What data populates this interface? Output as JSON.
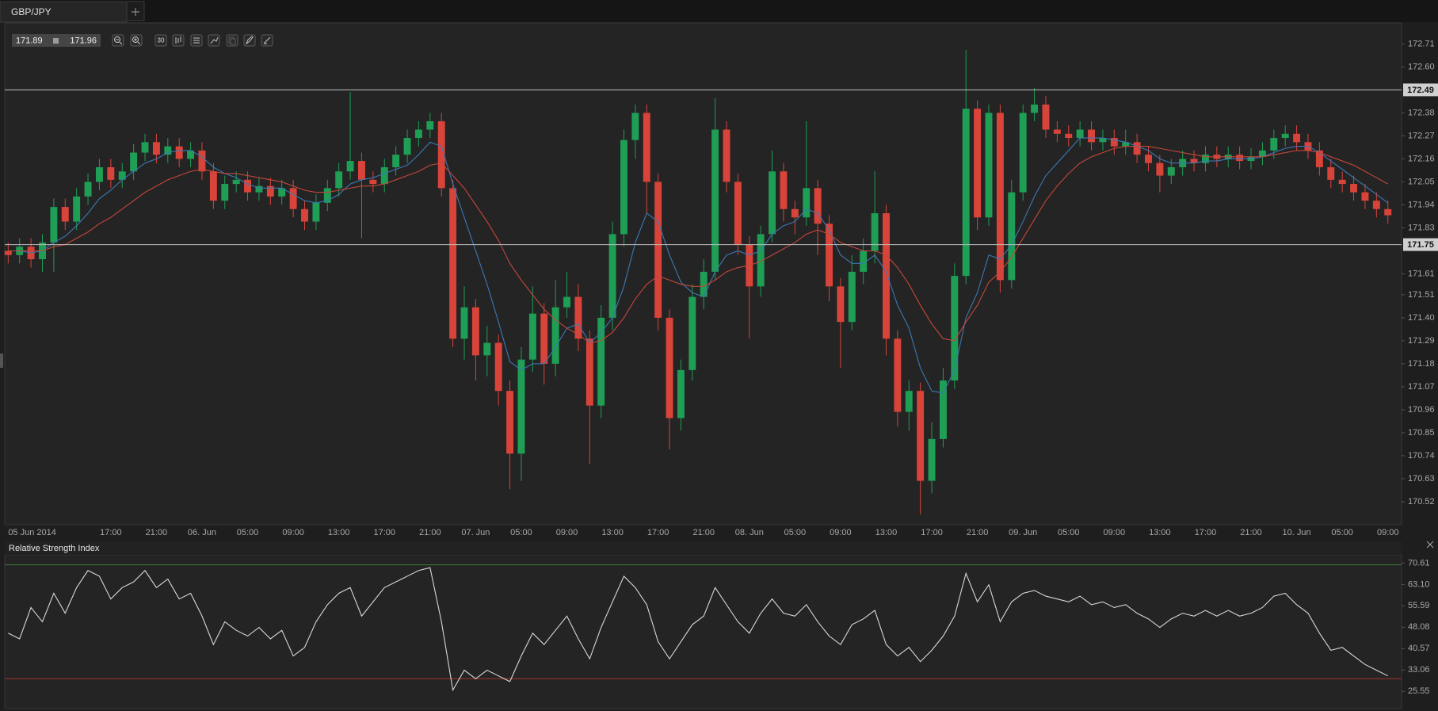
{
  "tab": "GBP/JPY",
  "quote": {
    "bid": "171.89",
    "ask": "171.96"
  },
  "interval_button": "30",
  "chart_data": [
    {
      "type": "candlestick",
      "xlim": [
        -0.3,
        122.2
      ],
      "xticks": [
        {
          "value": 0,
          "label": "05 Jun 2014"
        },
        {
          "value": 9,
          "label": "17:00"
        },
        {
          "value": 13,
          "label": "21:00"
        },
        {
          "value": 17,
          "label": "06. Jun"
        },
        {
          "value": 21,
          "label": "05:00"
        },
        {
          "value": 25,
          "label": "09:00"
        },
        {
          "value": 29,
          "label": "13:00"
        },
        {
          "value": 33,
          "label": "17:00"
        },
        {
          "value": 37,
          "label": "21:00"
        },
        {
          "value": 41,
          "label": "07. Jun"
        },
        {
          "value": 45,
          "label": "05:00"
        },
        {
          "value": 49,
          "label": "09:00"
        },
        {
          "value": 53,
          "label": "13:00"
        },
        {
          "value": 57,
          "label": "17:00"
        },
        {
          "value": 61,
          "label": "21:00"
        },
        {
          "value": 65,
          "label": "08. Jun"
        },
        {
          "value": 69,
          "label": "05:00"
        },
        {
          "value": 73,
          "label": "09:00"
        },
        {
          "value": 77,
          "label": "13:00"
        },
        {
          "value": 81,
          "label": "17:00"
        },
        {
          "value": 85,
          "label": "21:00"
        },
        {
          "value": 89,
          "label": "09. Jun"
        },
        {
          "value": 93,
          "label": "05:00"
        },
        {
          "value": 97,
          "label": "09:00"
        },
        {
          "value": 101,
          "label": "13:00"
        },
        {
          "value": 105,
          "label": "17:00"
        },
        {
          "value": 109,
          "label": "21:00"
        },
        {
          "value": 113,
          "label": "10. Jun"
        },
        {
          "value": 117,
          "label": "05:00"
        },
        {
          "value": 121,
          "label": "09:00"
        }
      ],
      "ylim": [
        170.41,
        172.81
      ],
      "yticks": [
        172.71,
        {
          "value": 172.6,
          "label": "172.60"
        },
        172.38,
        172.27,
        172.16,
        172.05,
        171.94,
        171.83,
        171.61,
        171.51,
        {
          "value": 171.4,
          "label": "171.40"
        },
        171.29,
        171.18,
        171.07,
        170.96,
        170.85,
        170.74,
        170.63,
        170.52
      ],
      "hlines": [
        172.49,
        171.75
      ],
      "hline_color": "#bdbdbd",
      "up_color": "#1f9e55",
      "down_color": "#d9443a",
      "x": [
        0,
        1,
        2,
        3,
        4,
        5,
        6,
        7,
        8,
        9,
        10,
        11,
        12,
        13,
        14,
        15,
        16,
        17,
        18,
        19,
        20,
        21,
        22,
        23,
        24,
        25,
        26,
        27,
        28,
        29,
        30,
        31,
        32,
        33,
        34,
        35,
        36,
        37,
        38,
        39,
        40,
        41,
        42,
        43,
        44,
        45,
        46,
        47,
        48,
        49,
        50,
        51,
        52,
        53,
        54,
        55,
        56,
        57,
        58,
        59,
        60,
        61,
        62,
        63,
        64,
        65,
        66,
        67,
        68,
        69,
        70,
        71,
        72,
        73,
        74,
        75,
        76,
        77,
        78,
        79,
        80,
        81,
        82,
        83,
        84,
        85,
        86,
        87,
        88,
        89,
        90,
        91,
        92,
        93,
        94,
        95,
        96,
        97,
        98,
        99,
        100,
        101,
        102,
        103,
        104,
        105,
        106,
        107,
        108,
        109,
        110,
        111,
        112,
        113,
        114,
        115,
        116,
        117,
        118,
        119,
        120,
        121
      ],
      "open": [
        171.72,
        171.7,
        171.74,
        171.68,
        171.76,
        171.93,
        171.86,
        171.98,
        172.05,
        172.12,
        172.06,
        172.1,
        172.19,
        172.24,
        172.18,
        172.22,
        172.16,
        172.2,
        172.1,
        171.96,
        172.04,
        172.06,
        172.0,
        172.03,
        171.98,
        172.02,
        171.92,
        171.86,
        171.95,
        172.02,
        172.1,
        172.15,
        172.06,
        172.04,
        172.12,
        172.18,
        172.26,
        172.3,
        172.34,
        172.02,
        171.3,
        171.45,
        171.22,
        171.28,
        171.05,
        170.75,
        171.2,
        171.42,
        171.18,
        171.45,
        171.5,
        171.3,
        170.98,
        171.4,
        171.8,
        172.25,
        172.38,
        172.05,
        171.4,
        170.92,
        171.15,
        171.5,
        171.62,
        172.3,
        172.05,
        171.75,
        171.55,
        171.8,
        172.1,
        171.92,
        171.88,
        172.02,
        171.85,
        171.55,
        171.38,
        171.62,
        171.72,
        171.9,
        171.3,
        170.95,
        171.05,
        170.62,
        170.82,
        171.1,
        171.6,
        172.4,
        171.88,
        172.38,
        171.58,
        172.0,
        172.38,
        172.42,
        172.3,
        172.28,
        172.26,
        172.3,
        172.24,
        172.26,
        172.22,
        172.24,
        172.18,
        172.14,
        172.08,
        172.12,
        172.16,
        172.14,
        172.18,
        172.16,
        172.18,
        172.15,
        172.17,
        172.2,
        172.26,
        172.28,
        172.24,
        172.2,
        172.12,
        172.06,
        172.04,
        172.0,
        171.96,
        171.92
      ],
      "high": [
        171.76,
        171.78,
        171.78,
        171.8,
        171.97,
        171.97,
        172.02,
        172.09,
        172.16,
        172.16,
        172.14,
        172.23,
        172.28,
        172.28,
        172.26,
        172.26,
        172.24,
        172.24,
        172.14,
        172.08,
        172.1,
        172.1,
        172.07,
        172.07,
        172.06,
        172.06,
        171.96,
        171.99,
        172.06,
        172.14,
        172.48,
        172.19,
        172.1,
        172.16,
        172.22,
        172.3,
        172.34,
        172.38,
        172.38,
        172.06,
        171.55,
        171.49,
        171.36,
        171.32,
        171.1,
        171.26,
        171.55,
        171.47,
        171.58,
        171.62,
        171.56,
        171.34,
        171.46,
        171.86,
        172.3,
        172.42,
        172.42,
        172.09,
        171.44,
        171.2,
        171.56,
        171.68,
        172.45,
        172.34,
        172.09,
        171.79,
        171.84,
        172.2,
        172.14,
        171.96,
        172.34,
        172.06,
        171.89,
        171.59,
        171.7,
        171.78,
        172.1,
        171.94,
        171.34,
        171.1,
        171.09,
        170.9,
        171.16,
        171.66,
        172.68,
        172.44,
        172.42,
        172.42,
        172.06,
        172.42,
        172.5,
        172.46,
        172.34,
        172.32,
        172.34,
        172.34,
        172.3,
        172.3,
        172.3,
        172.28,
        172.22,
        172.18,
        172.16,
        172.2,
        172.2,
        172.22,
        172.22,
        172.22,
        172.22,
        172.21,
        172.24,
        172.3,
        172.32,
        172.32,
        172.28,
        172.24,
        172.16,
        172.1,
        172.08,
        172.04,
        172.0,
        171.96
      ],
      "low": [
        171.66,
        171.66,
        171.64,
        171.62,
        171.62,
        171.82,
        171.82,
        171.94,
        172.01,
        172.02,
        172.02,
        172.06,
        172.15,
        172.14,
        172.14,
        172.12,
        172.12,
        172.06,
        171.92,
        171.92,
        172.0,
        171.96,
        171.96,
        171.94,
        171.94,
        171.88,
        171.82,
        171.82,
        171.91,
        171.98,
        172.06,
        171.78,
        172.0,
        172.0,
        172.08,
        172.14,
        172.22,
        172.26,
        171.98,
        171.26,
        171.2,
        171.1,
        171.12,
        170.98,
        170.58,
        170.62,
        171.14,
        171.08,
        171.12,
        171.4,
        171.24,
        170.7,
        170.92,
        171.34,
        171.74,
        172.16,
        171.9,
        171.34,
        170.77,
        170.86,
        171.1,
        171.44,
        171.58,
        172.0,
        171.7,
        171.3,
        171.5,
        171.76,
        171.86,
        171.8,
        171.84,
        171.7,
        171.48,
        171.16,
        171.34,
        171.56,
        171.66,
        171.22,
        170.88,
        170.86,
        170.46,
        170.56,
        170.78,
        171.06,
        171.56,
        171.82,
        171.84,
        171.52,
        171.54,
        171.96,
        172.34,
        172.26,
        172.24,
        172.22,
        172.22,
        172.2,
        172.2,
        172.18,
        172.18,
        172.14,
        172.1,
        172.0,
        172.04,
        172.08,
        172.1,
        172.1,
        172.12,
        172.12,
        172.11,
        172.11,
        172.13,
        172.16,
        172.22,
        172.2,
        172.16,
        172.08,
        172.02,
        172.0,
        171.96,
        171.92,
        171.88,
        171.85
      ],
      "close": [
        171.7,
        171.74,
        171.68,
        171.76,
        171.93,
        171.86,
        171.98,
        172.05,
        172.12,
        172.06,
        172.1,
        172.19,
        172.24,
        172.18,
        172.22,
        172.16,
        172.2,
        172.1,
        171.96,
        172.04,
        172.06,
        172.0,
        172.03,
        171.98,
        172.02,
        171.92,
        171.86,
        171.95,
        172.02,
        172.1,
        172.15,
        172.06,
        172.04,
        172.12,
        172.18,
        172.26,
        172.3,
        172.34,
        172.02,
        171.3,
        171.45,
        171.22,
        171.28,
        171.05,
        170.75,
        171.2,
        171.42,
        171.18,
        171.45,
        171.5,
        171.3,
        170.98,
        171.4,
        171.8,
        172.25,
        172.38,
        172.05,
        171.4,
        170.92,
        171.15,
        171.5,
        171.62,
        172.3,
        172.05,
        171.75,
        171.55,
        171.8,
        172.1,
        171.92,
        171.88,
        172.02,
        171.85,
        171.55,
        171.38,
        171.62,
        171.72,
        171.9,
        171.3,
        170.95,
        171.05,
        170.62,
        170.82,
        171.1,
        171.6,
        172.4,
        171.88,
        172.38,
        171.58,
        172.0,
        172.38,
        172.42,
        172.3,
        172.28,
        172.26,
        172.3,
        172.24,
        172.26,
        172.22,
        172.24,
        172.18,
        172.14,
        172.08,
        172.12,
        172.16,
        172.14,
        172.18,
        172.16,
        172.18,
        172.15,
        172.17,
        172.2,
        172.26,
        172.28,
        172.24,
        172.2,
        172.12,
        172.06,
        172.04,
        172.0,
        171.96,
        171.92,
        171.89
      ],
      "series": [
        {
          "color": "#3b78b4",
          "values": [
            171.72,
            171.72,
            171.71,
            171.72,
            171.76,
            171.79,
            171.84,
            171.9,
            171.97,
            172.01,
            172.06,
            172.1,
            172.14,
            172.16,
            172.19,
            172.2,
            172.2,
            172.17,
            172.12,
            172.09,
            172.07,
            172.04,
            172.02,
            172.02,
            172.02,
            171.99,
            171.96,
            171.95,
            171.96,
            171.99,
            172.04,
            172.06,
            172.07,
            172.09,
            172.11,
            172.13,
            172.18,
            172.24,
            172.22,
            172.04,
            171.88,
            171.72,
            171.56,
            171.38,
            171.19,
            171.15,
            171.18,
            171.18,
            171.26,
            171.35,
            171.37,
            171.28,
            171.33,
            171.4,
            171.55,
            171.76,
            171.9,
            171.86,
            171.7,
            171.57,
            171.52,
            171.5,
            171.62,
            171.7,
            171.72,
            171.7,
            171.72,
            171.8,
            171.84,
            171.86,
            171.92,
            171.9,
            171.82,
            171.7,
            171.66,
            171.66,
            171.7,
            171.62,
            171.46,
            171.35,
            171.16,
            171.05,
            171.04,
            171.15,
            171.4,
            171.52,
            171.7,
            171.68,
            171.75,
            171.86,
            171.98,
            172.08,
            172.14,
            172.2,
            172.26,
            172.26,
            172.26,
            172.25,
            172.24,
            172.22,
            172.2,
            172.16,
            172.14,
            172.14,
            172.14,
            172.15,
            172.15,
            172.16,
            172.16,
            172.16,
            172.17,
            172.19,
            172.21,
            172.22,
            172.22,
            172.19,
            172.15,
            172.11,
            172.07,
            172.03,
            171.99,
            171.95
          ]
        },
        {
          "color": "#c4463b",
          "values": [
            171.72,
            171.72,
            171.72,
            171.72,
            171.74,
            171.75,
            171.78,
            171.81,
            171.85,
            171.88,
            171.92,
            171.96,
            172.0,
            172.03,
            172.06,
            172.08,
            172.1,
            172.11,
            172.1,
            172.09,
            172.09,
            172.08,
            172.07,
            172.06,
            172.05,
            172.03,
            172.01,
            172.0,
            172.0,
            172.01,
            172.02,
            172.03,
            172.03,
            172.04,
            172.06,
            172.08,
            172.1,
            172.13,
            172.14,
            172.08,
            172.02,
            171.94,
            171.86,
            171.77,
            171.66,
            171.58,
            171.51,
            171.44,
            171.39,
            171.35,
            171.32,
            171.28,
            171.29,
            171.33,
            171.4,
            171.49,
            171.56,
            171.6,
            171.58,
            171.56,
            171.55,
            171.55,
            171.58,
            171.62,
            171.64,
            171.65,
            171.67,
            171.7,
            171.73,
            171.76,
            171.8,
            171.82,
            171.8,
            171.76,
            171.74,
            171.72,
            171.72,
            171.7,
            171.64,
            171.56,
            171.46,
            171.37,
            171.3,
            171.29,
            171.38,
            171.46,
            171.57,
            171.62,
            171.69,
            171.78,
            171.87,
            171.96,
            172.03,
            172.09,
            172.14,
            172.17,
            172.19,
            172.21,
            172.22,
            172.22,
            172.22,
            172.21,
            172.2,
            172.19,
            172.18,
            172.17,
            172.17,
            172.17,
            172.17,
            172.17,
            172.17,
            172.18,
            172.19,
            172.2,
            172.2,
            172.19,
            172.17,
            172.15,
            172.13,
            172.1,
            172.07,
            172.04
          ]
        }
      ]
    },
    {
      "type": "line",
      "title": "Relative Strength Index",
      "ylim": [
        19.5,
        73.5
      ],
      "yticks": [
        70.61,
        {
          "value": 63.1,
          "label": "63.10"
        },
        55.59,
        48.08,
        40.57,
        33.06,
        25.55
      ],
      "levels": [
        {
          "value": 70,
          "color": "#3f7d36"
        },
        {
          "value": 30,
          "color": "#a3352f"
        }
      ],
      "color": "#d8d8d8",
      "values": [
        46,
        44,
        55,
        50,
        60,
        53,
        62,
        68,
        66,
        58,
        62,
        64,
        68,
        62,
        65,
        58,
        60,
        52,
        42,
        50,
        47,
        45,
        48,
        44,
        47,
        38,
        41,
        50,
        56,
        60,
        62,
        52,
        57,
        62,
        64,
        66,
        68,
        69,
        50,
        26,
        33,
        30,
        33,
        31,
        29,
        38,
        46,
        42,
        47,
        52,
        44,
        37,
        48,
        57,
        66,
        62,
        56,
        43,
        37,
        43,
        49,
        52,
        62,
        56,
        50,
        46,
        53,
        58,
        53,
        52,
        56,
        50,
        45,
        42,
        49,
        51,
        54,
        42,
        38,
        41,
        36,
        40,
        45,
        52,
        67,
        57,
        63,
        50,
        57,
        60,
        61,
        59,
        58,
        57,
        59,
        56,
        57,
        55,
        56,
        53,
        51,
        48,
        51,
        53,
        52,
        54,
        52,
        54,
        52,
        53,
        55,
        59,
        60,
        56,
        53,
        46,
        40,
        41,
        38,
        35,
        33,
        31
      ]
    }
  ]
}
